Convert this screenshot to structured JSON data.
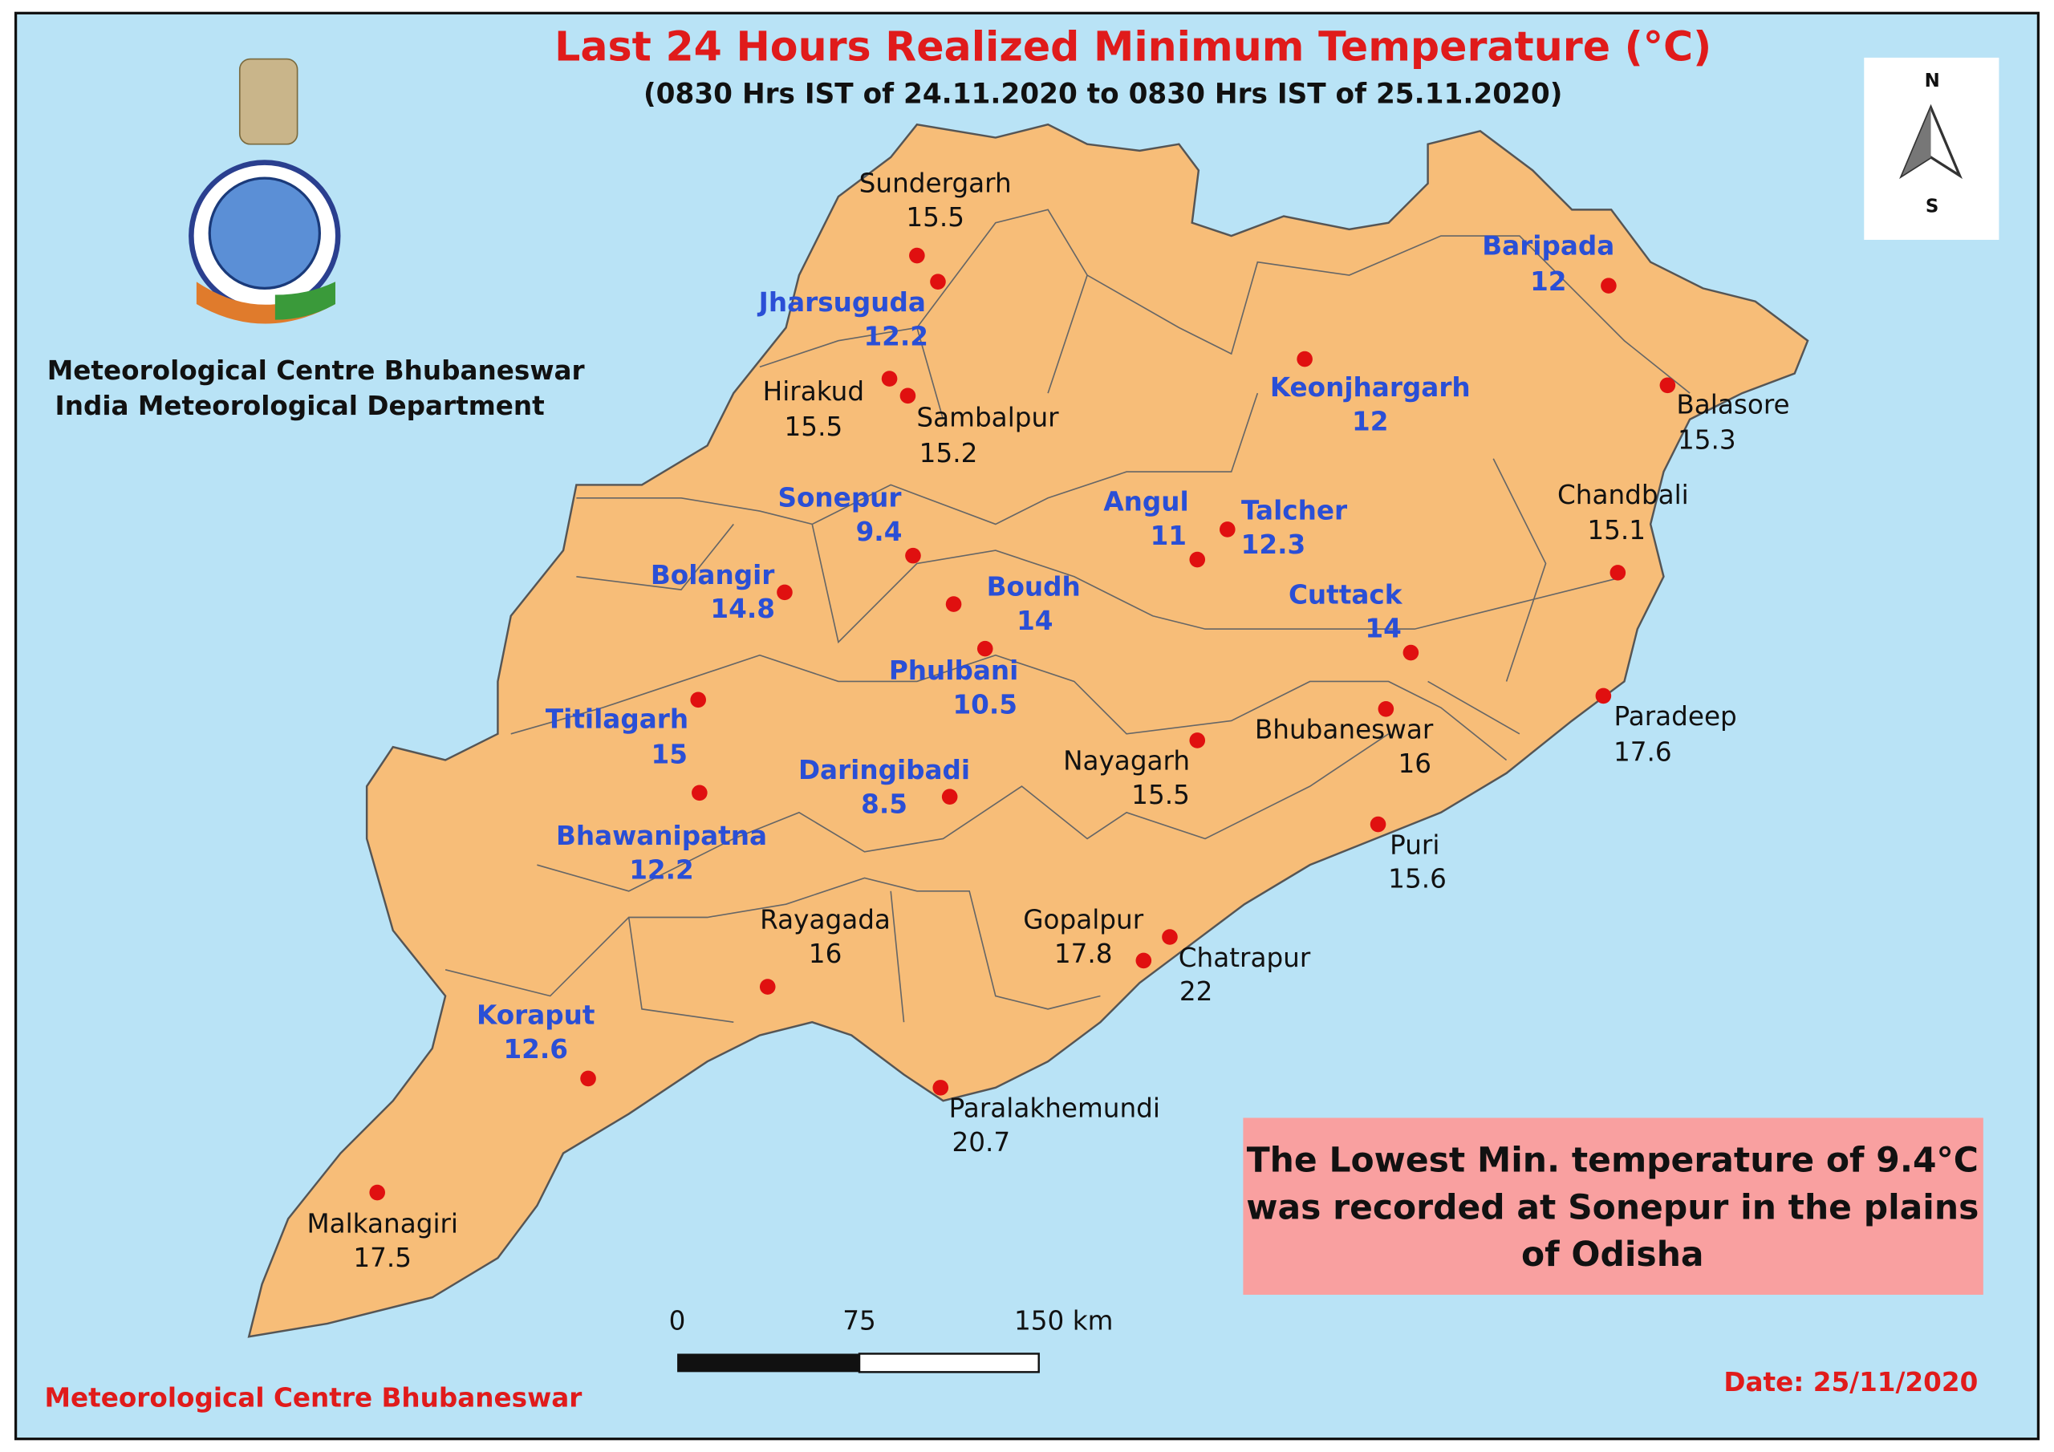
{
  "header": {
    "title": "Last 24 Hours Realized Minimum Temperature (°C)",
    "subtitle": "(0830 Hrs IST of 24.11.2020 to 0830 Hrs IST of 25.11.2020)",
    "org_line_1": "Meteorological Centre Bhubaneswar",
    "org_line_2": "India Meteorological Department"
  },
  "north_arrow": {
    "north": "N",
    "south": "S"
  },
  "stations": [
    {
      "name": "Sundergarh",
      "value": 15.5,
      "color": "#111111"
    },
    {
      "name": "Jharsuguda",
      "value": 12.2,
      "color": "#2a4fd6"
    },
    {
      "name": "Hirakud",
      "value": 15.5,
      "color": "#111111"
    },
    {
      "name": "Sambalpur",
      "value": 15.2,
      "color": "#111111"
    },
    {
      "name": "Baripada",
      "value": 12,
      "color": "#2a4fd6"
    },
    {
      "name": "Keonjhargarh",
      "value": 12,
      "color": "#2a4fd6"
    },
    {
      "name": "Balasore",
      "value": 15.3,
      "color": "#111111"
    },
    {
      "name": "Chandbali",
      "value": 15.1,
      "color": "#111111"
    },
    {
      "name": "Sonepur",
      "value": 9.4,
      "color": "#2a4fd6"
    },
    {
      "name": "Angul",
      "value": 11,
      "color": "#2a4fd6"
    },
    {
      "name": "Talcher",
      "value": 12.3,
      "color": "#2a4fd6"
    },
    {
      "name": "Bolangir",
      "value": 14.8,
      "color": "#2a4fd6"
    },
    {
      "name": "Boudh",
      "value": 14,
      "color": "#2a4fd6"
    },
    {
      "name": "Cuttack",
      "value": 14,
      "color": "#2a4fd6"
    },
    {
      "name": "Phulbani",
      "value": 10.5,
      "color": "#2a4fd6"
    },
    {
      "name": "Titilagarh",
      "value": 15,
      "color": "#2a4fd6"
    },
    {
      "name": "Paradeep",
      "value": 17.6,
      "color": "#111111"
    },
    {
      "name": "Bhubaneswar",
      "value": 16,
      "color": "#111111"
    },
    {
      "name": "Nayagarh",
      "value": 15.5,
      "color": "#111111"
    },
    {
      "name": "Daringibadi",
      "value": 8.5,
      "color": "#2a4fd6"
    },
    {
      "name": "Bhawanipatna",
      "value": 12.2,
      "color": "#2a4fd6"
    },
    {
      "name": "Puri",
      "value": 15.6,
      "color": "#111111"
    },
    {
      "name": "Rayagada",
      "value": 16,
      "color": "#111111"
    },
    {
      "name": "Gopalpur",
      "value": 17.8,
      "color": "#111111"
    },
    {
      "name": "Chatrapur",
      "value": 22,
      "color": "#111111"
    },
    {
      "name": "Koraput",
      "value": 12.6,
      "color": "#2a4fd6"
    },
    {
      "name": "Paralakhemundi",
      "value": 20.7,
      "color": "#111111"
    },
    {
      "name": "Malkanagiri",
      "value": 17.5,
      "color": "#111111"
    }
  ],
  "note": {
    "lines": [
      "The Lowest Min. temperature of 9.4°C",
      "was recorded at Sonepur in the plains",
      "of Odisha"
    ]
  },
  "scale_bar": {
    "labels": [
      "0",
      "75",
      "150 km"
    ]
  },
  "footer": {
    "left": "Meteorological Centre Bhubaneswar",
    "date": "Date: 25/11/2020"
  }
}
